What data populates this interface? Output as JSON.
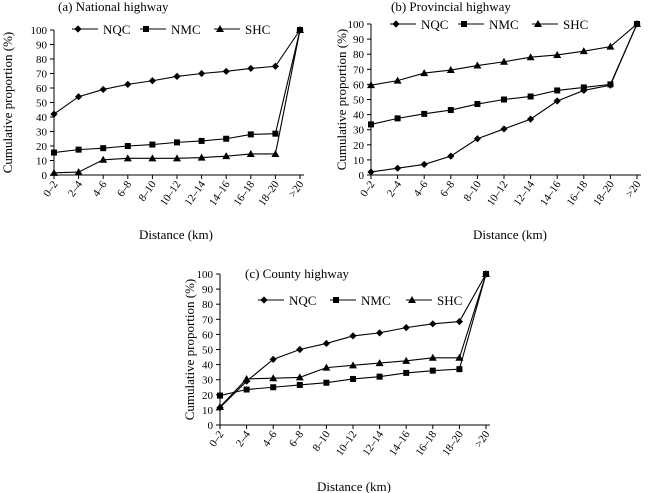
{
  "chart_data": [
    {
      "type": "line",
      "title": "(a) National highway",
      "xlabel": "Distance (km)",
      "ylabel": "Cumulative proportion (%)",
      "categories": [
        "0–2",
        "2–4",
        "4–6",
        "6–8",
        "8–10",
        "10–12",
        "12–14",
        "14–16",
        "16–18",
        "18–20",
        ">20"
      ],
      "yticks": [
        "0",
        "10",
        "20",
        "30",
        "40",
        "50",
        "60",
        "70",
        "80",
        "90",
        "100"
      ],
      "ylim": [
        0,
        100
      ],
      "legend": [
        "NQC",
        "NMC",
        "SHC"
      ],
      "series": [
        {
          "name": "NQC",
          "marker": "diamond",
          "values": [
            42,
            54,
            59,
            62.5,
            65,
            68,
            70,
            71.5,
            73.5,
            75,
            100
          ]
        },
        {
          "name": "NMC",
          "marker": "square",
          "values": [
            15.5,
            17.5,
            18.5,
            20,
            21,
            22.5,
            23.5,
            25,
            28,
            28.5,
            100
          ]
        },
        {
          "name": "SHC",
          "marker": "triangle",
          "values": [
            1.5,
            2,
            10.5,
            11.5,
            11.5,
            11.5,
            12,
            13,
            14.5,
            14.5,
            100
          ]
        }
      ]
    },
    {
      "type": "line",
      "title": "(b) Provincial highway",
      "xlabel": "Distance (km)",
      "ylabel": "Cumulative proportion (%)",
      "categories": [
        "0–2",
        "2–4",
        "4–6",
        "6–8",
        "8–10",
        "10–12",
        "12–14",
        "14–16",
        "16–18",
        "18–20",
        ">20"
      ],
      "yticks": [
        "0",
        "10",
        "20",
        "30",
        "40",
        "50",
        "60",
        "70",
        "80",
        "90",
        "100"
      ],
      "ylim": [
        0,
        100
      ],
      "legend": [
        "NQC",
        "NMC",
        "SHC"
      ],
      "series": [
        {
          "name": "NQC",
          "marker": "diamond",
          "values": [
            2,
            4.5,
            7,
            12.5,
            24,
            30.5,
            37,
            49,
            56,
            59.5,
            100
          ]
        },
        {
          "name": "NMC",
          "marker": "square",
          "values": [
            33.5,
            37.5,
            40.5,
            43,
            47,
            50,
            52,
            56,
            58,
            60,
            100
          ]
        },
        {
          "name": "SHC",
          "marker": "triangle",
          "values": [
            59.5,
            62.5,
            67.5,
            69.5,
            72.5,
            75,
            78,
            79.5,
            82,
            85,
            100
          ]
        }
      ]
    },
    {
      "type": "line",
      "title": "(c) County highway",
      "xlabel": "Distance (km)",
      "ylabel": "Cumulative proportion (%)",
      "categories": [
        "0–2",
        "2–4",
        "4–6",
        "6–8",
        "8–10",
        "10–12",
        "12–14",
        "14–16",
        "16–18",
        "18–20",
        ">20"
      ],
      "yticks": [
        "0",
        "10",
        "20",
        "30",
        "40",
        "50",
        "60",
        "70",
        "80",
        "90",
        "100"
      ],
      "ylim": [
        0,
        100
      ],
      "legend": [
        "NQC",
        "NMC",
        "SHC"
      ],
      "series": [
        {
          "name": "NQC",
          "marker": "diamond",
          "values": [
            11.5,
            29,
            43.5,
            50,
            54,
            59,
            61,
            64.5,
            67,
            68.5,
            100
          ]
        },
        {
          "name": "NMC",
          "marker": "square",
          "values": [
            19.5,
            23.5,
            25,
            26.5,
            28,
            30.5,
            32,
            34.5,
            36,
            37,
            100
          ]
        },
        {
          "name": "SHC",
          "marker": "triangle",
          "values": [
            12,
            30.5,
            31,
            31.5,
            38,
            39.5,
            41,
            42.5,
            44.5,
            44.5,
            100
          ]
        }
      ]
    }
  ]
}
